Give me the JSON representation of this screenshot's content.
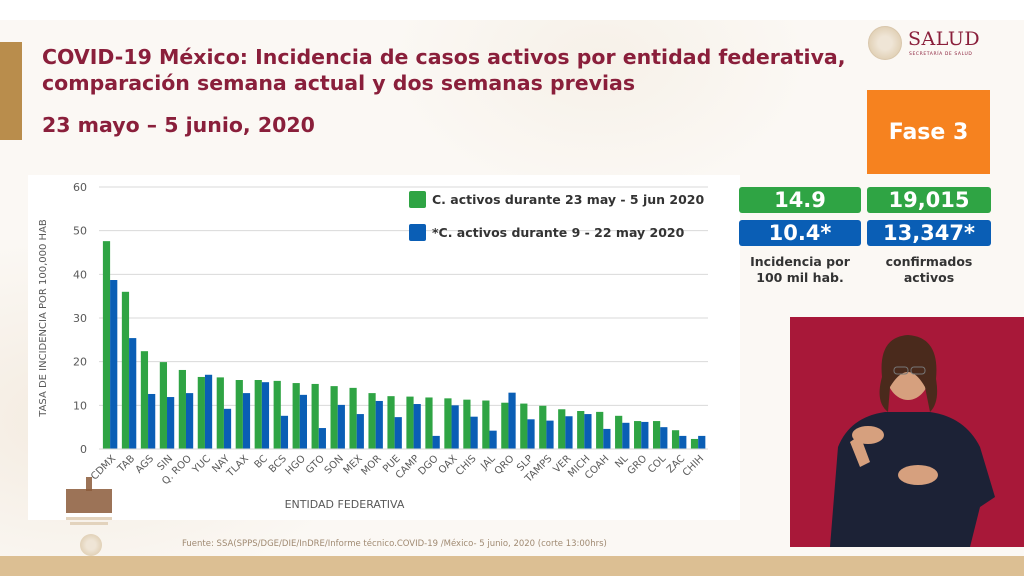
{
  "header": {
    "title_line1": "COVID-19 México: Incidencia de casos activos por entidad federativa,",
    "title_line2": "comparación semana actual y dos semanas previas",
    "date_range": "23 mayo – 5 junio, 2020"
  },
  "logo": {
    "name": "SALUD",
    "subtitle": "SECRETARÍA DE SALUD",
    "icon": "coat-of-arms-icon"
  },
  "phase_badge": {
    "label": "Fase 3",
    "color": "#f6821f"
  },
  "stats": {
    "current": {
      "incidence": "14.9",
      "active_confirmed": "19,015",
      "color": "#2fa444"
    },
    "previous": {
      "incidence": "10.4*",
      "active_confirmed": "13,347*",
      "color": "#0a5eb5"
    },
    "incidence_caption": [
      "Incidencia por",
      "100 mil hab."
    ],
    "active_caption": [
      "confirmados",
      "activos"
    ]
  },
  "legend": [
    {
      "label": "C. activos durante 23 may - 5 jun 2020",
      "color": "#2fa444"
    },
    {
      "label": "*C. activos durante  9 - 22 may 2020",
      "color": "#0a5eb5"
    }
  ],
  "source": "Fuente: SSA(SPPS/DGE/DIE/InDRE/Informe técnico.COVID-19 /México- 5 junio, 2020 (corte 13:00hrs)",
  "video": {
    "description": "Sign language interpreter"
  },
  "chart_data": {
    "type": "bar",
    "title": "",
    "xlabel": "ENTIDAD FEDERATIVA",
    "ylabel": "TASA DE INCIDENCIA  POR 100,000 HAB",
    "ylim": [
      0,
      60
    ],
    "yticks": [
      0,
      10,
      20,
      30,
      40,
      50,
      60
    ],
    "grid": true,
    "legend_position": "top-right",
    "categories": [
      "CDMX",
      "TAB",
      "AGS",
      "SIN",
      "Q. ROO",
      "YUC",
      "NAY",
      "TLAX",
      "BC",
      "BCS",
      "HGO",
      "GTO",
      "SON",
      "MEX",
      "MOR",
      "PUE",
      "CAMP",
      "DGO",
      "OAX",
      "CHIS",
      "JAL",
      "QRO",
      "SLP",
      "TAMPS",
      "VER",
      "MICH",
      "COAH",
      "NL",
      "GRO",
      "COL",
      "ZAC",
      "CHIH"
    ],
    "series": [
      {
        "name": "C. activos durante 23 may - 5 jun 2020",
        "color": "#2fa444",
        "values": [
          47.6,
          36.0,
          22.4,
          19.9,
          18.1,
          16.5,
          16.4,
          15.8,
          15.8,
          15.6,
          15.1,
          14.9,
          14.4,
          14.0,
          12.8,
          12.1,
          12.0,
          11.8,
          11.6,
          11.3,
          11.1,
          10.6,
          10.4,
          9.9,
          9.1,
          8.7,
          8.5,
          7.6,
          6.4,
          6.4,
          4.3,
          2.3
        ]
      },
      {
        "name": "*C. activos durante  9 - 22 may 2020",
        "color": "#0a5eb5",
        "values": [
          38.7,
          25.4,
          12.6,
          11.9,
          12.8,
          17.0,
          9.2,
          12.8,
          15.3,
          7.6,
          12.4,
          4.8,
          10.1,
          8.0,
          11.0,
          7.3,
          10.3,
          3.0,
          10.0,
          7.4,
          4.2,
          12.9,
          6.8,
          6.5,
          7.5,
          8.0,
          4.6,
          6.0,
          6.2,
          5.0,
          3.0,
          3.0
        ]
      }
    ]
  }
}
